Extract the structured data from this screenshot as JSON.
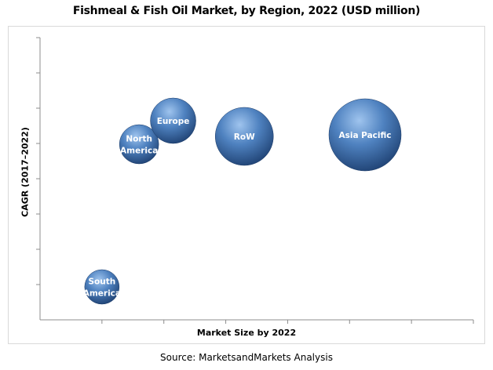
{
  "chart_data": {
    "type": "bubble",
    "title": "Fishmeal & Fish Oil Market, by Region, 2022 (USD million)",
    "xlabel": "Market Size by 2022",
    "ylabel": "CAGR (2017–2022)",
    "source": "Source: MarketsandMarkets Analysis",
    "xlim": [
      0,
      7
    ],
    "ylim": [
      0,
      9
    ],
    "x_ticks": 7,
    "y_ticks": 8,
    "grid": false,
    "legend": "none",
    "bubble_color": "#2e5a92",
    "series": [
      {
        "label": [
          "South",
          "America"
        ],
        "x": 1.0,
        "y": 1.05,
        "size": 22
      },
      {
        "label": [
          "North",
          "America"
        ],
        "x": 1.6,
        "y": 5.6,
        "size": 25
      },
      {
        "label": [
          "Europe"
        ],
        "x": 2.15,
        "y": 6.35,
        "size": 29
      },
      {
        "label": [
          "RoW"
        ],
        "x": 3.3,
        "y": 5.85,
        "size": 37
      },
      {
        "label": [
          "Asia Pacific"
        ],
        "x": 5.25,
        "y": 5.9,
        "size": 46
      }
    ]
  }
}
